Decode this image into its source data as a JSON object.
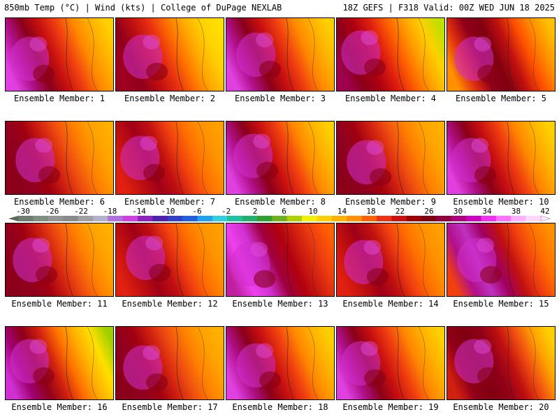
{
  "header": {
    "title_left": "850mb Temp (°C) | Wind (kts) | College of DuPage NEXLAB",
    "title_right": "18Z GEFS | F318 Valid: 00Z WED JUN 18 2025"
  },
  "panels": [
    {
      "label": "Ensemble Member: 1",
      "scheme": "hot-west"
    },
    {
      "label": "Ensemble Member: 2",
      "scheme": "hot-west-narrow"
    },
    {
      "label": "Ensemble Member: 3",
      "scheme": "hot-west"
    },
    {
      "label": "Ensemble Member: 4",
      "scheme": "dark-green-ne"
    },
    {
      "label": "Ensemble Member: 5",
      "scheme": "dark-center"
    },
    {
      "label": "Ensemble Member: 6",
      "scheme": "dark-west"
    },
    {
      "label": "Ensemble Member: 7",
      "scheme": "dark-southwest"
    },
    {
      "label": "Ensemble Member: 8",
      "scheme": "hot-west"
    },
    {
      "label": "Ensemble Member: 9",
      "scheme": "dark-west"
    },
    {
      "label": "Ensemble Member: 10",
      "scheme": "hot-west"
    },
    {
      "label": "Ensemble Member: 11",
      "scheme": "dark-west"
    },
    {
      "label": "Ensemble Member: 12",
      "scheme": "dark-southwest"
    },
    {
      "label": "Ensemble Member: 13",
      "scheme": "hot-north"
    },
    {
      "label": "Ensemble Member: 14",
      "scheme": "dark-southwest"
    },
    {
      "label": "Ensemble Member: 15",
      "scheme": "hot-center"
    },
    {
      "label": "Ensemble Member: 16",
      "scheme": "hot-west-green-ne"
    },
    {
      "label": "Ensemble Member: 17",
      "scheme": "dark-west"
    },
    {
      "label": "Ensemble Member: 18",
      "scheme": "hot-west"
    },
    {
      "label": "Ensemble Member: 19",
      "scheme": "hot-west"
    },
    {
      "label": "Ensemble Member: 20",
      "scheme": "dark-center-wide"
    }
  ],
  "colorbar": {
    "tick_labels": [
      "-30",
      "-26",
      "-22",
      "-18",
      "-14",
      "-10",
      "-6",
      "-2",
      "2",
      "6",
      "10",
      "14",
      "18",
      "22",
      "26",
      "30",
      "34",
      "38",
      "42"
    ],
    "colors": [
      "#6e7e6e",
      "#7f8f7f",
      "#959595",
      "#8a8a8a",
      "#a0a0a0",
      "#b0b0c8",
      "#b070e0",
      "#d040e0",
      "#9020c0",
      "#5020b0",
      "#3040c8",
      "#2060e0",
      "#20a0f0",
      "#30d0e0",
      "#20c0a0",
      "#20b070",
      "#30a030",
      "#70b020",
      "#b0d000",
      "#f0f000",
      "#ffd000",
      "#ffb000",
      "#ff9000",
      "#ff6000",
      "#f03010",
      "#d01010",
      "#a00000",
      "#800010",
      "#900040",
      "#b00080",
      "#d000c0",
      "#f030f0",
      "#ff70ff",
      "#ffb0ff",
      "#ffd8ff"
    ]
  }
}
